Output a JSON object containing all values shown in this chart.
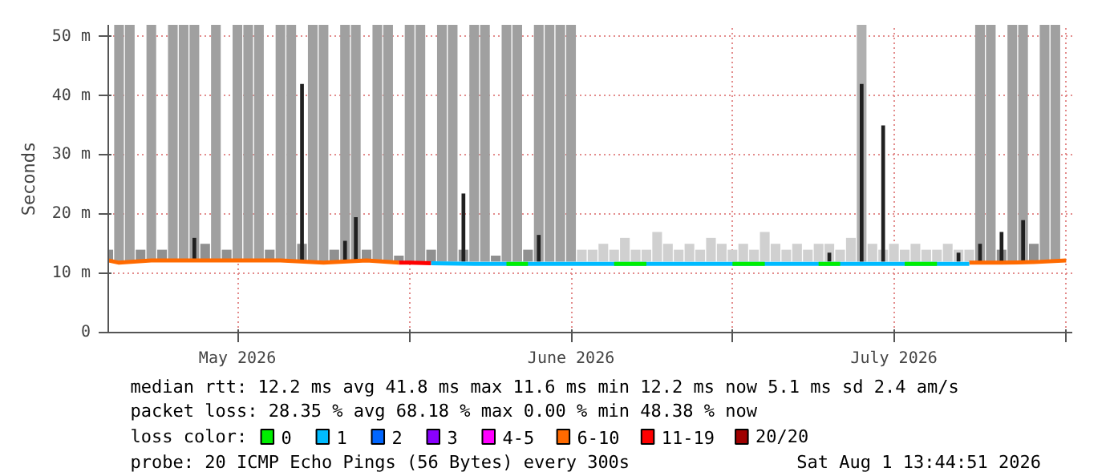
{
  "chart_data": {
    "type": "line",
    "ylabel": "Seconds",
    "xlim": [
      "2026-05-04T00:00",
      "2026-08-01T13:44"
    ],
    "xticks": [
      {
        "value": "2026-05-16",
        "label": "May 2026"
      },
      {
        "value": "2026-06-01",
        "label": null
      },
      {
        "value": "2026-06-16",
        "label": "June 2026"
      },
      {
        "value": "2026-07-01",
        "label": null
      },
      {
        "value": "2026-07-16",
        "label": "July 2026"
      },
      {
        "value": "2026-08-01",
        "label": null
      }
    ],
    "ylim": [
      0,
      52
    ],
    "yticks": [
      0,
      {
        "value": 10,
        "label": "10 m"
      },
      {
        "value": 20,
        "label": "20 m"
      },
      {
        "value": 30,
        "label": "30 m"
      },
      {
        "value": 40,
        "label": "40 m"
      },
      {
        "value": 50,
        "label": "50 m"
      }
    ],
    "grid": true,
    "legend": "bottom",
    "legend_title": "loss color:",
    "series": [
      {
        "type": "bar",
        "x": [
          "2026-05-04",
          "2026-05-05",
          "2026-05-06",
          "2026-05-07",
          "2026-05-08",
          "2026-05-09",
          "2026-05-10",
          "2026-05-11",
          "2026-05-12",
          "2026-05-13",
          "2026-05-14",
          "2026-05-15",
          "2026-05-16",
          "2026-05-17",
          "2026-05-18",
          "2026-05-19",
          "2026-05-20",
          "2026-05-21",
          "2026-05-22",
          "2026-05-23",
          "2026-05-24",
          "2026-05-25",
          "2026-05-26",
          "2026-05-27",
          "2026-05-28",
          "2026-05-29",
          "2026-05-30",
          "2026-05-31",
          "2026-06-01",
          "2026-06-02",
          "2026-06-03",
          "2026-06-04",
          "2026-06-05",
          "2026-06-06",
          "2026-06-07",
          "2026-06-08",
          "2026-06-09",
          "2026-06-10",
          "2026-06-11",
          "2026-06-12",
          "2026-06-13",
          "2026-06-14",
          "2026-06-15",
          "2026-06-16",
          "2026-06-17",
          "2026-06-18",
          "2026-06-19",
          "2026-06-20",
          "2026-06-21",
          "2026-06-22",
          "2026-06-23",
          "2026-06-24",
          "2026-06-25",
          "2026-06-26",
          "2026-06-27",
          "2026-06-28",
          "2026-06-29",
          "2026-06-30",
          "2026-07-01",
          "2026-07-02",
          "2026-07-03",
          "2026-07-04",
          "2026-07-05",
          "2026-07-06",
          "2026-07-07",
          "2026-07-08",
          "2026-07-09",
          "2026-07-10",
          "2026-07-11",
          "2026-07-12",
          "2026-07-13",
          "2026-07-14",
          "2026-07-15",
          "2026-07-16",
          "2026-07-17",
          "2026-07-18",
          "2026-07-19",
          "2026-07-20",
          "2026-07-21",
          "2026-07-22",
          "2026-07-23",
          "2026-07-24",
          "2026-07-25",
          "2026-07-26",
          "2026-07-27",
          "2026-07-28",
          "2026-07-29",
          "2026-07-30",
          "2026-07-31"
        ],
        "base": [
          12,
          12,
          12,
          12,
          12,
          12,
          12,
          12,
          12,
          12,
          12,
          12,
          12,
          12,
          12,
          12,
          12,
          12,
          12,
          12,
          12,
          12,
          12,
          12,
          12,
          12,
          12,
          12,
          12,
          12,
          12,
          12,
          12,
          12,
          12,
          12,
          12,
          12,
          12,
          12,
          12,
          12,
          12,
          12,
          12,
          12,
          12,
          12,
          12,
          12,
          12,
          12,
          12,
          12,
          12,
          12,
          12,
          12,
          12,
          12,
          12,
          12,
          12,
          12,
          12,
          12,
          12,
          12,
          12,
          12,
          12,
          12,
          12,
          12,
          12,
          12,
          12,
          12,
          12,
          12,
          12,
          12,
          12,
          12,
          12,
          12,
          12,
          12,
          12
        ],
        "values": [
          2,
          40,
          40,
          2,
          40,
          2,
          40,
          40,
          40,
          3,
          40,
          2,
          40,
          40,
          40,
          2,
          40,
          40,
          3,
          40,
          40,
          2,
          40,
          40,
          2,
          40,
          40,
          1,
          40,
          40,
          2,
          40,
          40,
          2,
          40,
          40,
          1,
          40,
          40,
          2,
          40,
          40,
          40,
          40,
          2,
          2,
          3,
          2,
          4,
          2,
          2,
          5,
          3,
          2,
          3,
          2,
          4,
          3,
          2,
          3,
          2,
          5,
          3,
          2,
          3,
          2,
          3,
          3,
          2,
          4,
          40,
          3,
          2,
          3,
          2,
          3,
          2,
          2,
          3,
          2,
          2,
          40,
          40,
          2,
          40,
          40,
          3,
          40,
          40
        ],
        "colors": [
          "#909090",
          "#a0a0a0",
          "#a0a0a0",
          "#909090",
          "#a0a0a0",
          "#909090",
          "#a0a0a0",
          "#a0a0a0",
          "#a0a0a0",
          "#909090",
          "#a0a0a0",
          "#909090",
          "#a0a0a0",
          "#a0a0a0",
          "#a0a0a0",
          "#909090",
          "#a0a0a0",
          "#a0a0a0",
          "#909090",
          "#a0a0a0",
          "#a0a0a0",
          "#909090",
          "#a0a0a0",
          "#a0a0a0",
          "#909090",
          "#a0a0a0",
          "#a0a0a0",
          "#909090",
          "#a0a0a0",
          "#a0a0a0",
          "#909090",
          "#a0a0a0",
          "#a0a0a0",
          "#909090",
          "#a0a0a0",
          "#a0a0a0",
          "#909090",
          "#a0a0a0",
          "#a0a0a0",
          "#909090",
          "#a0a0a0",
          "#a0a0a0",
          "#a0a0a0",
          "#a0a0a0",
          "#d0d0d0",
          "#d0d0d0",
          "#d0d0d0",
          "#d0d0d0",
          "#d0d0d0",
          "#d0d0d0",
          "#d0d0d0",
          "#d0d0d0",
          "#d0d0d0",
          "#d0d0d0",
          "#d0d0d0",
          "#d0d0d0",
          "#d0d0d0",
          "#d0d0d0",
          "#d0d0d0",
          "#d0d0d0",
          "#d0d0d0",
          "#d0d0d0",
          "#d0d0d0",
          "#d0d0d0",
          "#d0d0d0",
          "#d0d0d0",
          "#d0d0d0",
          "#d0d0d0",
          "#d0d0d0",
          "#d0d0d0",
          "#b0b0b0",
          "#d0d0d0",
          "#d0d0d0",
          "#d0d0d0",
          "#d0d0d0",
          "#d0d0d0",
          "#d0d0d0",
          "#d0d0d0",
          "#d0d0d0",
          "#d0d0d0",
          "#d0d0d0",
          "#a0a0a0",
          "#a0a0a0",
          "#909090",
          "#a0a0a0",
          "#a0a0a0",
          "#909090",
          "#a0a0a0",
          "#a0a0a0"
        ]
      },
      {
        "type": "bar",
        "color": "#202020",
        "x": [
          "2026-05-12",
          "2026-05-22",
          "2026-05-26",
          "2026-05-27",
          "2026-06-06",
          "2026-06-13",
          "2026-07-10",
          "2026-07-13",
          "2026-07-15",
          "2026-07-22",
          "2026-07-24",
          "2026-07-26",
          "2026-07-28"
        ],
        "base": [
          12,
          12,
          12,
          12,
          12,
          12,
          12,
          12,
          12,
          12,
          12,
          12,
          12
        ],
        "values": [
          4,
          30,
          3.5,
          7.5,
          11.5,
          4.5,
          1.5,
          30,
          23,
          1.5,
          3,
          5,
          7
        ]
      },
      {
        "name": "0",
        "color": "#00ee00",
        "x": [
          "2026-06-10",
          "2026-06-12",
          "2026-06-16",
          "2026-06-20",
          "2026-06-23",
          "2026-06-27",
          "2026-07-01",
          "2026-07-04",
          "2026-07-06",
          "2026-07-09",
          "2026-07-11",
          "2026-07-14",
          "2026-07-17",
          "2026-07-20"
        ],
        "values": [
          11.6,
          11.6,
          null,
          11.6,
          11.6,
          null,
          11.6,
          11.6,
          null,
          11.6,
          11.6,
          null,
          11.6,
          11.6
        ]
      },
      {
        "name": "1",
        "color": "#00bbff",
        "x": [
          "2026-06-03",
          "2026-06-07",
          "2026-06-11",
          "2026-06-15",
          "2026-06-19",
          "2026-06-23",
          "2026-06-27",
          "2026-07-01",
          "2026-07-05",
          "2026-07-09",
          "2026-07-13",
          "2026-07-17",
          "2026-07-21",
          "2026-07-23"
        ],
        "values": [
          11.7,
          11.6,
          11.6,
          11.6,
          11.6,
          11.6,
          11.6,
          11.6,
          11.6,
          11.6,
          11.6,
          11.6,
          11.6,
          11.6
        ]
      },
      {
        "name": "2",
        "color": "#0066ff"
      },
      {
        "name": "3",
        "color": "#8a00ff"
      },
      {
        "name": "4-5",
        "color": "#ff00ff"
      },
      {
        "name": "6-10",
        "color": "#ff6a00",
        "x": [
          "2026-05-04",
          "2026-05-05",
          "2026-05-08",
          "2026-05-12",
          "2026-05-16",
          "2026-05-20",
          "2026-05-24",
          "2026-05-28",
          "2026-05-31",
          "2026-06-15",
          "2026-07-23",
          "2026-07-26",
          "2026-07-29",
          "2026-08-01"
        ],
        "values": [
          12.2,
          11.8,
          12.2,
          12.2,
          12.2,
          12.2,
          11.8,
          12.2,
          11.8,
          null,
          11.8,
          11.8,
          11.9,
          12.2
        ]
      },
      {
        "name": "11-19",
        "color": "#ff0000",
        "x": [
          "2026-05-31",
          "2026-06-01",
          "2026-06-03"
        ],
        "values": [
          11.8,
          11.8,
          11.7
        ]
      },
      {
        "name": "20/20",
        "color": "#a00000"
      }
    ],
    "annotations": [
      "median rtt:  12.2 ms avg  41.8 ms max  11.6 ms min  12.2 ms now  5.1 ms sd  2.4   am/s",
      "packet loss: 28.35 % avg  68.18 % max  0.00 % min  48.38 % now",
      "probe:       20 ICMP Echo Pings (56 Bytes) every 300s",
      "Sat Aug  1 13:44:51 2026"
    ]
  }
}
